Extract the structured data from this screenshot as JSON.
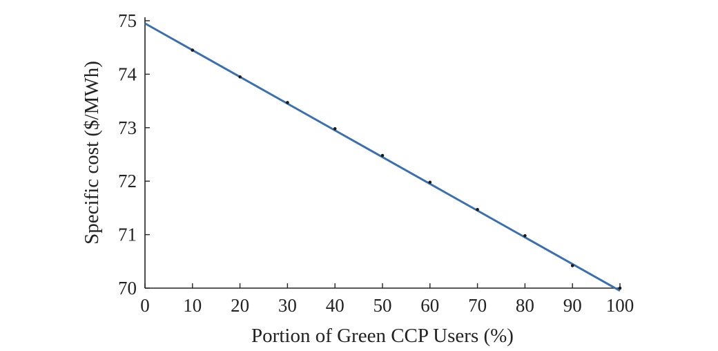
{
  "chart_data": {
    "type": "line",
    "xlabel": "Portion of Green CCP Users (%)",
    "ylabel": "Specific cost ($/MWh)",
    "xlim": [
      0,
      100
    ],
    "ylim": [
      70,
      75
    ],
    "x_ticks": [
      "0",
      "10",
      "20",
      "30",
      "40",
      "50",
      "60",
      "70",
      "80",
      "90",
      "100"
    ],
    "y_ticks": [
      "70",
      "71",
      "72",
      "73",
      "74",
      "75"
    ],
    "grid": false,
    "series": [
      {
        "style": "line",
        "color": "#3a6fb0",
        "x": [
          0,
          100
        ],
        "y": [
          74.95,
          69.95
        ]
      },
      {
        "style": "markers",
        "color": "#1a1a1a",
        "x": [
          10,
          20,
          30,
          40,
          50,
          60,
          70,
          80,
          90,
          100
        ],
        "y": [
          74.45,
          73.95,
          73.47,
          72.98,
          72.48,
          71.98,
          71.47,
          70.98,
          70.42,
          70.0
        ]
      }
    ]
  }
}
